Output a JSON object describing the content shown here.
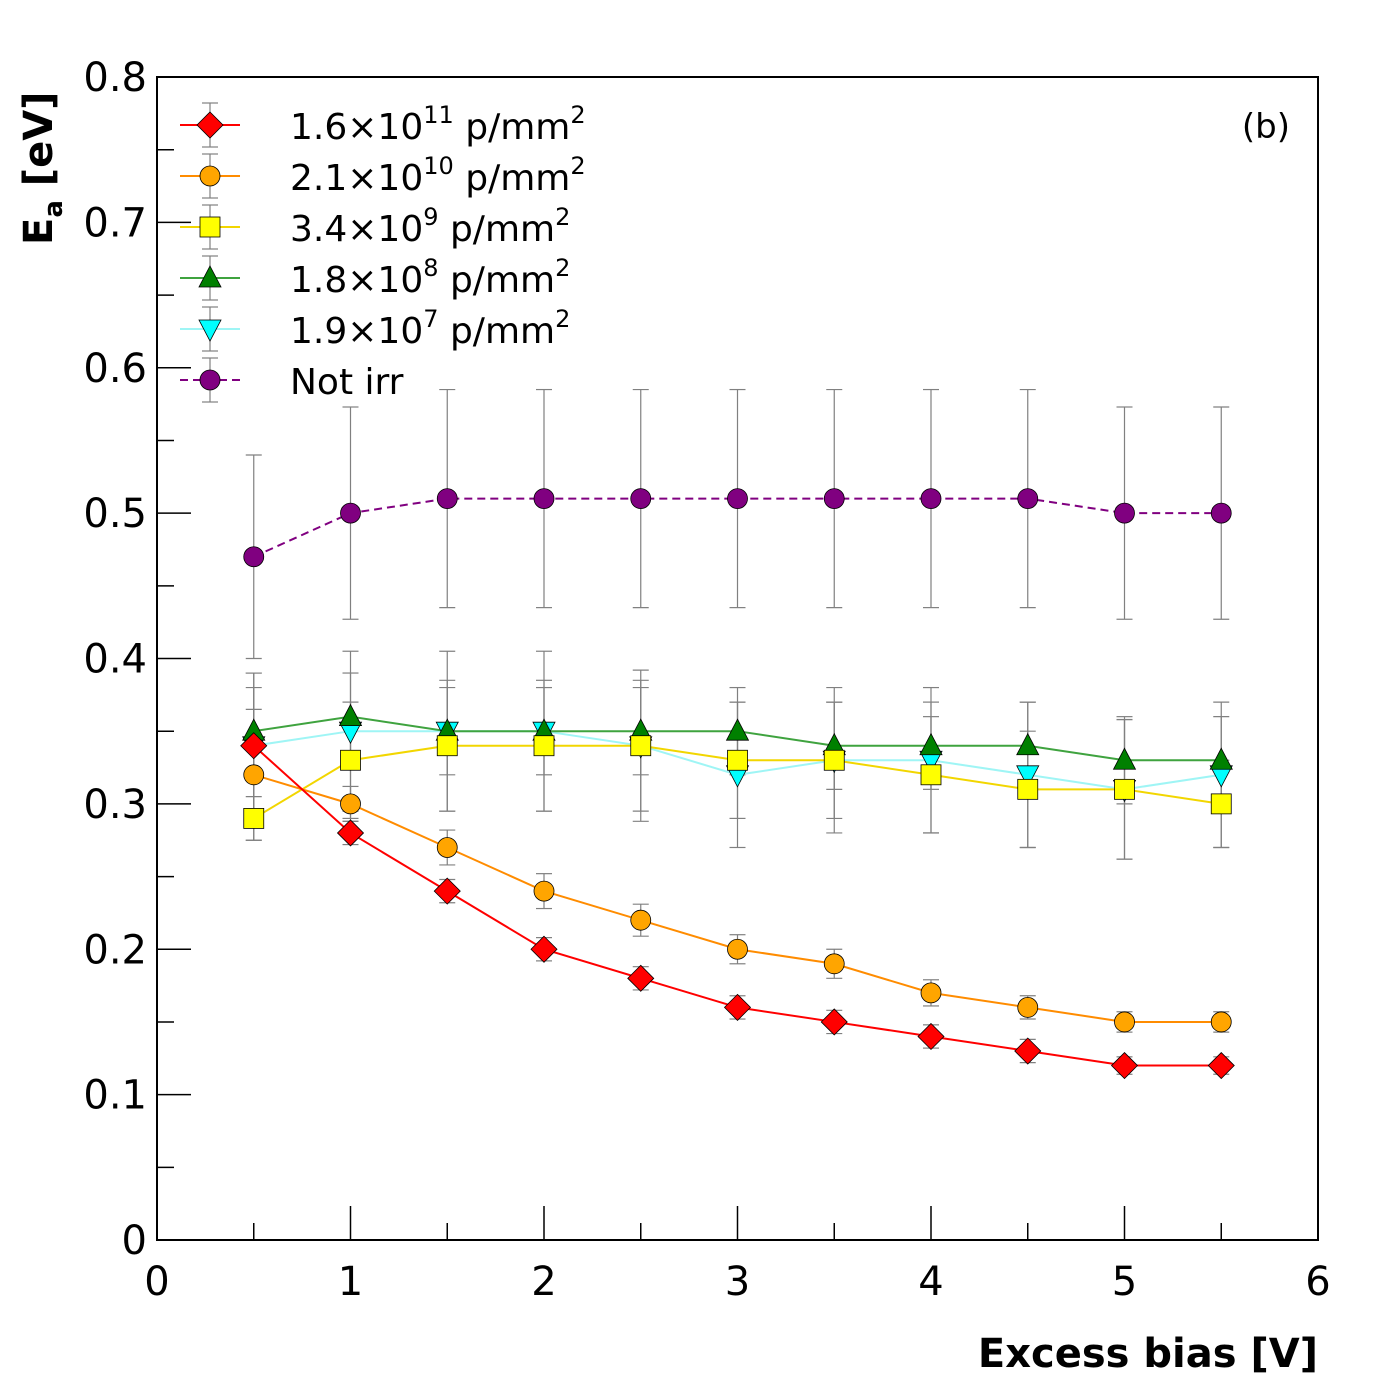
{
  "chart_data": {
    "type": "line",
    "panel_label": "(b)",
    "xlabel": "Excess bias [V]",
    "ylabel": {
      "main": "E",
      "sub": "a",
      "unit": " [eV]"
    },
    "xlim": [
      0,
      6
    ],
    "ylim": [
      0,
      0.8
    ],
    "x_ticks": [
      "0",
      "1",
      "2",
      "3",
      "4",
      "5",
      "6"
    ],
    "y_ticks": [
      "0",
      "0.1",
      "0.2",
      "0.3",
      "0.4",
      "0.5",
      "0.6",
      "0.7",
      "0.8"
    ],
    "grid": false,
    "legend_position": "top-left",
    "x": [
      0.5,
      1.0,
      1.5,
      2.0,
      2.5,
      3.0,
      3.5,
      4.0,
      4.5,
      5.0,
      5.5
    ],
    "series": [
      {
        "name": "1.6×10",
        "name_exp": "11",
        "name_unit": " p/mm",
        "name_unit_exp": "2",
        "color": "#ff0000",
        "marker": "diamond",
        "dashed": false,
        "values": [
          0.34,
          0.28,
          0.24,
          0.2,
          0.18,
          0.16,
          0.15,
          0.14,
          0.13,
          0.12,
          0.12
        ],
        "errors": [
          0.05,
          0.008,
          0.008,
          0.008,
          0.008,
          0.008,
          0.008,
          0.008,
          0.008,
          0.006,
          0.006
        ]
      },
      {
        "name": "2.1×10",
        "name_exp": "10",
        "name_unit": " p/mm",
        "name_unit_exp": "2",
        "color": "#ffa500",
        "line_color": "#ff8c00",
        "marker": "circle",
        "dashed": false,
        "values": [
          0.32,
          0.3,
          0.27,
          0.24,
          0.22,
          0.2,
          0.19,
          0.17,
          0.16,
          0.15,
          0.15
        ],
        "errors": [
          0.045,
          0.012,
          0.012,
          0.012,
          0.011,
          0.01,
          0.01,
          0.009,
          0.008,
          0.007,
          0.007
        ]
      },
      {
        "name": "3.4×10",
        "name_exp": "9",
        "name_unit": "  p/mm",
        "name_unit_exp": "2",
        "color": "#ffff00",
        "line_color": "#f2d600",
        "marker": "square",
        "dashed": false,
        "values": [
          0.29,
          0.33,
          0.34,
          0.34,
          0.34,
          0.33,
          0.33,
          0.32,
          0.31,
          0.31,
          0.3
        ],
        "errors": [
          0.015,
          0.04,
          0.045,
          0.045,
          0.045,
          0.04,
          0.04,
          0.04,
          0.04,
          0.048,
          0.03
        ]
      },
      {
        "name": "1.8×10",
        "name_exp": "8",
        "name_unit": "  p/mm",
        "name_unit_exp": "2",
        "color": "#008000",
        "line_color": "#3fa33f",
        "marker": "triangle-up",
        "dashed": false,
        "values": [
          0.35,
          0.36,
          0.35,
          0.35,
          0.35,
          0.35,
          0.34,
          0.34,
          0.34,
          0.33,
          0.33
        ],
        "errors": [
          0.03,
          0.03,
          0.03,
          0.03,
          0.03,
          0.03,
          0.03,
          0.03,
          0.03,
          0.03,
          0.03
        ]
      },
      {
        "name": "1.9×10",
        "name_exp": "7",
        "name_unit": "  p/mm",
        "name_unit_exp": "2",
        "color": "#00ffff",
        "line_color": "#9ff5f5",
        "marker": "triangle-down",
        "dashed": false,
        "values": [
          0.34,
          0.35,
          0.35,
          0.35,
          0.34,
          0.32,
          0.33,
          0.33,
          0.32,
          0.31,
          0.32
        ],
        "errors": [
          0.05,
          0.055,
          0.055,
          0.055,
          0.052,
          0.05,
          0.05,
          0.05,
          0.05,
          0.048,
          0.05
        ]
      },
      {
        "name": "Not irr",
        "name_exp": "",
        "name_unit": "",
        "name_unit_exp": "",
        "color": "#800080",
        "marker": "circle",
        "dashed": true,
        "values": [
          0.47,
          0.5,
          0.51,
          0.51,
          0.51,
          0.51,
          0.51,
          0.51,
          0.51,
          0.5,
          0.5
        ],
        "errors": [
          0.07,
          0.073,
          0.075,
          0.075,
          0.075,
          0.075,
          0.075,
          0.075,
          0.075,
          0.073,
          0.073
        ]
      }
    ]
  }
}
